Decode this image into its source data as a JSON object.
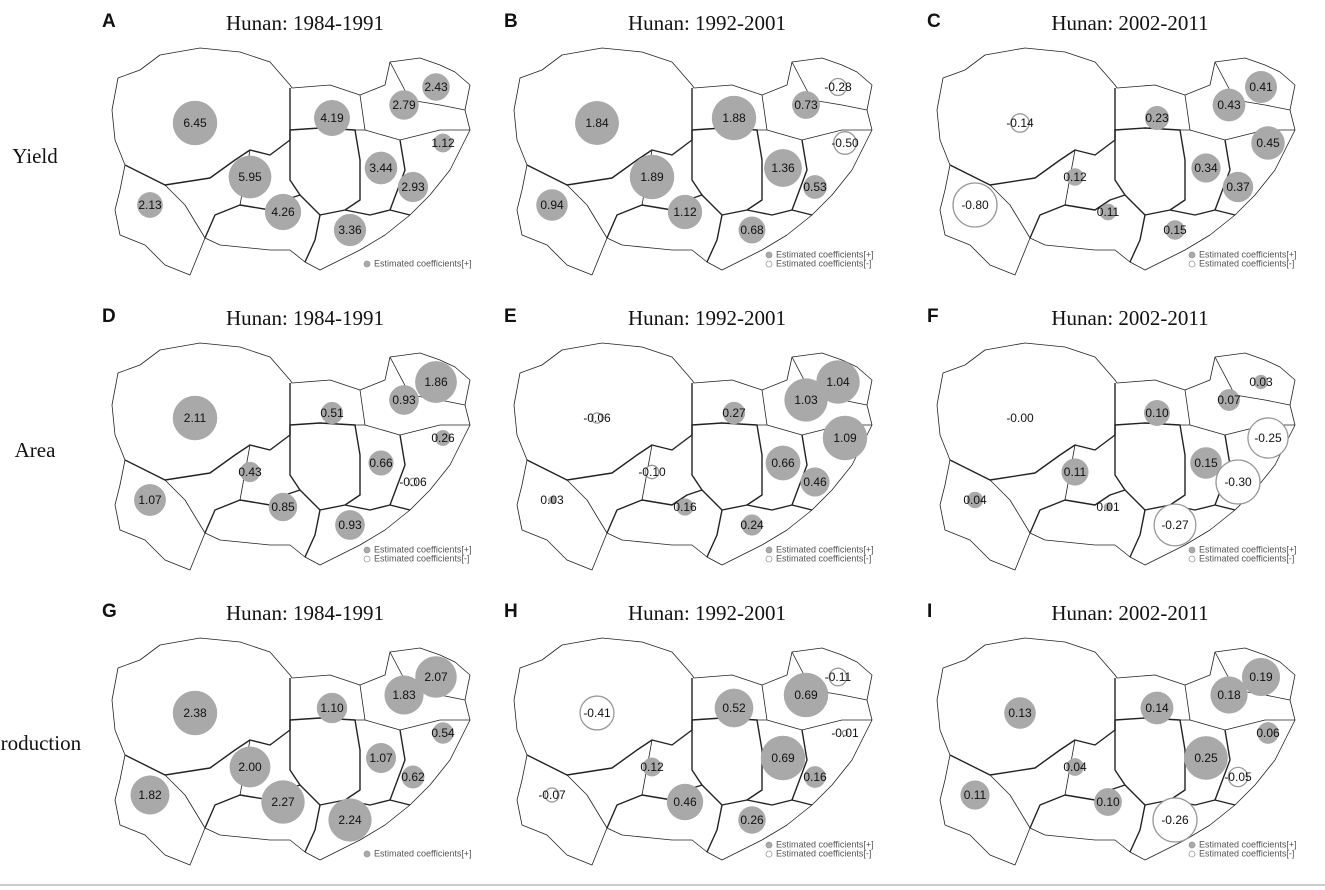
{
  "row_labels": [
    "Yield",
    "Area",
    "Production"
  ],
  "panels": [
    {
      "letter": "A",
      "title": "Hunan: 1984-1991",
      "legend": [
        "Estimated coefficients[+]"
      ],
      "bubbles": [
        {
          "value": 6.45,
          "label": "6.45"
        },
        {
          "value": 2.13,
          "label": "2.13"
        },
        {
          "value": 5.95,
          "label": "5.95"
        },
        {
          "value": 4.26,
          "label": "4.26"
        },
        {
          "value": 3.36,
          "label": "3.36"
        },
        {
          "value": 4.19,
          "label": "4.19"
        },
        {
          "value": 2.79,
          "label": "2.79"
        },
        {
          "value": 2.43,
          "label": "2.43"
        },
        {
          "value": 1.12,
          "label": "1.12"
        },
        {
          "value": 3.44,
          "label": "3.44"
        },
        {
          "value": 2.93,
          "label": "2.93"
        }
      ]
    },
    {
      "letter": "B",
      "title": "Hunan: 1992-2001",
      "legend": [
        "Estimated coefficients[+]",
        "Estimated coefficients[-]"
      ],
      "bubbles": [
        {
          "value": 1.84,
          "label": "1.84"
        },
        {
          "value": 0.94,
          "label": "0.94"
        },
        {
          "value": 1.89,
          "label": "1.89"
        },
        {
          "value": 1.12,
          "label": "1.12"
        },
        {
          "value": 0.68,
          "label": "0.68"
        },
        {
          "value": 1.88,
          "label": "1.88"
        },
        {
          "value": 0.73,
          "label": "0.73"
        },
        {
          "value": -0.28,
          "label": "-0.28"
        },
        {
          "value": -0.5,
          "label": "-0.50"
        },
        {
          "value": 1.36,
          "label": "1.36"
        },
        {
          "value": 0.53,
          "label": "0.53"
        }
      ]
    },
    {
      "letter": "C",
      "title": "Hunan: 2002-2011",
      "legend": [
        "Estimated coefficients[+]",
        "Estimated coefficients[-]"
      ],
      "bubbles": [
        {
          "value": -0.14,
          "label": "-0.14"
        },
        {
          "value": -0.8,
          "label": "-0.80"
        },
        {
          "value": 0.12,
          "label": "0.12"
        },
        {
          "value": 0.11,
          "label": "0.11"
        },
        {
          "value": 0.15,
          "label": "0.15"
        },
        {
          "value": 0.23,
          "label": "0.23"
        },
        {
          "value": 0.43,
          "label": "0.43"
        },
        {
          "value": 0.41,
          "label": "0.41"
        },
        {
          "value": 0.45,
          "label": "0.45"
        },
        {
          "value": 0.34,
          "label": "0.34"
        },
        {
          "value": 0.37,
          "label": "0.37"
        }
      ]
    },
    {
      "letter": "D",
      "title": "Hunan: 1984-1991",
      "legend": [
        "Estimated coefficients[+]",
        "Estimated coefficients[-]"
      ],
      "bubbles": [
        {
          "value": 2.11,
          "label": "2.11"
        },
        {
          "value": 1.07,
          "label": "1.07"
        },
        {
          "value": 0.43,
          "label": "0.43"
        },
        {
          "value": 0.85,
          "label": "0.85"
        },
        {
          "value": 0.93,
          "label": "0.93"
        },
        {
          "value": 0.51,
          "label": "0.51"
        },
        {
          "value": 0.93,
          "label": "0.93"
        },
        {
          "value": 1.86,
          "label": "1.86"
        },
        {
          "value": 0.26,
          "label": "0.26"
        },
        {
          "value": 0.66,
          "label": "0.66"
        },
        {
          "value": -0.06,
          "label": "-0.06"
        }
      ]
    },
    {
      "letter": "E",
      "title": "Hunan: 1992-2001",
      "legend": [
        "Estimated coefficients[+]",
        "Estimated coefficients[-]"
      ],
      "bubbles": [
        {
          "value": -0.06,
          "label": "-0.06"
        },
        {
          "value": 0.03,
          "label": "0.03"
        },
        {
          "value": -0.1,
          "label": "-0.10"
        },
        {
          "value": 0.16,
          "label": "0.16"
        },
        {
          "value": 0.24,
          "label": "0.24"
        },
        {
          "value": 0.27,
          "label": "0.27"
        },
        {
          "value": 1.03,
          "label": "1.03"
        },
        {
          "value": 1.04,
          "label": "1.04"
        },
        {
          "value": 1.09,
          "label": "1.09"
        },
        {
          "value": 0.66,
          "label": "0.66"
        },
        {
          "value": 0.46,
          "label": "0.46"
        }
      ]
    },
    {
      "letter": "F",
      "title": "Hunan: 2002-2011",
      "legend": [
        "Estimated coefficients[+]",
        "Estimated coefficients[-]"
      ],
      "bubbles": [
        {
          "value": 0,
          "label": "-0.00"
        },
        {
          "value": 0.04,
          "label": "0.04"
        },
        {
          "value": 0.11,
          "label": "0.11"
        },
        {
          "value": 0.01,
          "label": "0.01"
        },
        {
          "value": -0.27,
          "label": "-0.27"
        },
        {
          "value": 0.1,
          "label": "0.10"
        },
        {
          "value": 0.07,
          "label": "0.07"
        },
        {
          "value": 0.03,
          "label": "0.03"
        },
        {
          "value": -0.25,
          "label": "-0.25"
        },
        {
          "value": 0.15,
          "label": "0.15"
        },
        {
          "value": -0.3,
          "label": "-0.30"
        }
      ]
    },
    {
      "letter": "G",
      "title": "Hunan: 1984-1991",
      "legend": [
        "Estimated coefficients[+]"
      ],
      "bubbles": [
        {
          "value": 2.38,
          "label": "2.38"
        },
        {
          "value": 1.82,
          "label": "1.82"
        },
        {
          "value": 2.0,
          "label": "2.00"
        },
        {
          "value": 2.27,
          "label": "2.27"
        },
        {
          "value": 2.24,
          "label": "2.24"
        },
        {
          "value": 1.1,
          "label": "1.10"
        },
        {
          "value": 1.83,
          "label": "1.83"
        },
        {
          "value": 2.07,
          "label": "2.07"
        },
        {
          "value": 0.54,
          "label": "0.54"
        },
        {
          "value": 1.07,
          "label": "1.07"
        },
        {
          "value": 0.62,
          "label": "0.62"
        }
      ]
    },
    {
      "letter": "H",
      "title": "Hunan: 1992-2001",
      "legend": [
        "Estimated coefficients[+]",
        "Estimated coefficients[-]"
      ],
      "bubbles": [
        {
          "value": -0.41,
          "label": "-0.41"
        },
        {
          "value": -0.07,
          "label": "-0.07"
        },
        {
          "value": 0.12,
          "label": "0.12"
        },
        {
          "value": 0.46,
          "label": "0.46"
        },
        {
          "value": 0.26,
          "label": "0.26"
        },
        {
          "value": 0.52,
          "label": "0.52"
        },
        {
          "value": 0.69,
          "label": "0.69"
        },
        {
          "value": -0.11,
          "label": "-0.11"
        },
        {
          "value": -0.01,
          "label": "-0.01"
        },
        {
          "value": 0.69,
          "label": "0.69"
        },
        {
          "value": 0.16,
          "label": "0.16"
        }
      ]
    },
    {
      "letter": "I",
      "title": "Hunan: 2002-2011",
      "legend": [
        "Estimated coefficients[+]",
        "Estimated coefficients[-]"
      ],
      "bubbles": [
        {
          "value": 0.13,
          "label": "0.13"
        },
        {
          "value": 0.11,
          "label": "0.11"
        },
        {
          "value": 0.04,
          "label": "0.04"
        },
        {
          "value": 0.1,
          "label": "0.10"
        },
        {
          "value": -0.26,
          "label": "-0.26"
        },
        {
          "value": 0.14,
          "label": "0.14"
        },
        {
          "value": 0.18,
          "label": "0.18"
        },
        {
          "value": 0.19,
          "label": "0.19"
        },
        {
          "value": 0.06,
          "label": "0.06"
        },
        {
          "value": 0.25,
          "label": "0.25"
        },
        {
          "value": -0.05,
          "label": "-0.05"
        }
      ]
    }
  ]
}
